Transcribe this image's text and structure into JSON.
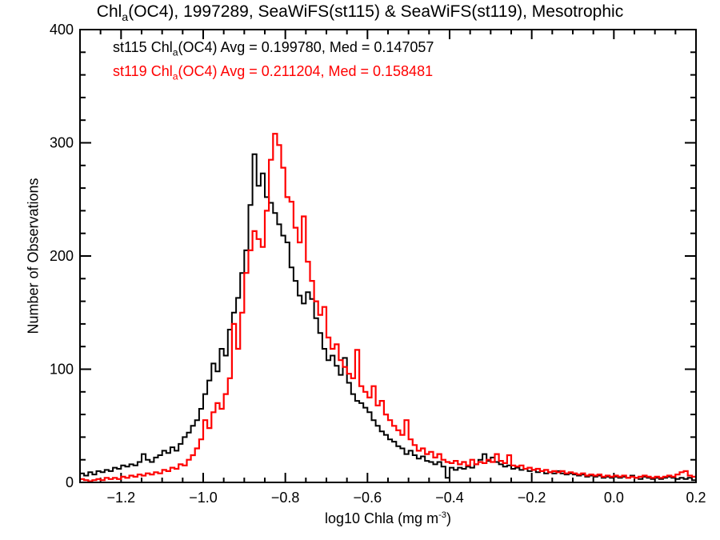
{
  "title": {
    "pre": "Chl",
    "sub": "a",
    "post": "(OC4), 1997289, SeaWiFS(st115) & SeaWiFS(st119), Mesotrophic"
  },
  "legend": {
    "entries": [
      {
        "pre": "st115 Chl",
        "sub": "a",
        "post": "(OC4) Avg = 0.199780, Med = 0.147057",
        "color": "#000000"
      },
      {
        "pre": "st119 Chl",
        "sub": "a",
        "post": "(OC4) Avg = 0.211204, Med = 0.158481",
        "color": "#ff0000"
      }
    ]
  },
  "axes": {
    "x": {
      "label_pre": "log10 Chla (mg m",
      "label_sup": "-3",
      "label_post": ")",
      "min": -1.3,
      "max": 0.2,
      "major_ticks": [
        -1.2,
        -1.0,
        -0.8,
        -0.6,
        -0.4,
        -0.2,
        0.0,
        0.2
      ],
      "major_tick_labels": [
        "−1.2",
        "−1.0",
        "−0.8",
        "−0.6",
        "−0.4",
        "−0.2",
        "0.0",
        "0.2"
      ],
      "minor_step": 0.05
    },
    "y": {
      "label": "Number of Observations",
      "min": 0,
      "max": 400,
      "major_ticks": [
        0,
        100,
        200,
        300,
        400
      ],
      "major_tick_labels": [
        "0",
        "100",
        "200",
        "300",
        "400"
      ],
      "minor_step": 20
    }
  },
  "colors": {
    "background": "#ffffff",
    "axis": "#000000",
    "series1": "#000000",
    "series2": "#ff0000"
  },
  "chart_data": {
    "type": "step-histogram",
    "title": "Chla(OC4), 1997289, SeaWiFS(st115) & SeaWiFS(st119), Mesotrophic",
    "xlabel": "log10 Chla (mg m-3)",
    "ylabel": "Number of Observations",
    "xlim": [
      -1.3,
      0.2
    ],
    "ylim": [
      0,
      400
    ],
    "grid": false,
    "legend_position": "top-left-inside",
    "x_start": -1.3,
    "bin_width": 0.01,
    "series": [
      {
        "name": "st115",
        "color": "#000000",
        "avg": 0.19978,
        "med": 0.147057,
        "values": [
          8,
          6,
          9,
          7,
          10,
          9,
          11,
          10,
          13,
          12,
          15,
          14,
          16,
          15,
          18,
          25,
          20,
          18,
          22,
          24,
          28,
          26,
          31,
          28,
          34,
          40,
          44,
          50,
          55,
          65,
          78,
          90,
          105,
          98,
          118,
          112,
          135,
          150,
          163,
          185,
          205,
          245,
          290,
          262,
          273,
          252,
          247,
          238,
          228,
          218,
          212,
          190,
          178,
          165,
          158,
          168,
          162,
          145,
          132,
          118,
          108,
          112,
          103,
          95,
          110,
          88,
          78,
          72,
          70,
          66,
          62,
          55,
          50,
          45,
          42,
          38,
          36,
          32,
          30,
          25,
          28,
          24,
          21,
          23,
          19,
          18,
          16,
          18,
          14,
          4,
          13,
          11,
          13,
          12,
          14,
          13,
          16,
          20,
          25,
          19,
          22,
          18,
          16,
          14,
          15,
          12,
          13,
          11,
          12,
          10,
          11,
          9,
          10,
          8,
          9,
          8,
          10,
          8,
          7,
          8,
          7,
          6,
          7,
          5,
          6,
          5,
          6,
          4,
          5,
          4,
          5,
          4,
          5,
          4,
          6,
          4,
          3,
          5,
          4,
          3,
          4,
          3,
          4,
          5,
          4,
          3,
          4,
          3,
          4,
          2
        ]
      },
      {
        "name": "st119",
        "color": "#ff0000",
        "avg": 0.211204,
        "med": 0.158481,
        "values": [
          3,
          2,
          1,
          2,
          3,
          2,
          4,
          3,
          4,
          3,
          5,
          4,
          6,
          5,
          7,
          6,
          8,
          7,
          9,
          8,
          11,
          10,
          13,
          12,
          16,
          15,
          20,
          24,
          30,
          38,
          55,
          48,
          62,
          70,
          65,
          78,
          92,
          140,
          118,
          150,
          185,
          205,
          222,
          215,
          208,
          240,
          285,
          308,
          298,
          278,
          252,
          248,
          225,
          212,
          235,
          195,
          178,
          160,
          148,
          155,
          128,
          118,
          122,
          108,
          102,
          96,
          92,
          117,
          85,
          80,
          75,
          85,
          68,
          72,
          60,
          55,
          50,
          46,
          42,
          55,
          38,
          33,
          28,
          30,
          25,
          27,
          22,
          25,
          20,
          18,
          17,
          19,
          16,
          18,
          15,
          20,
          16,
          18,
          17,
          20,
          18,
          25,
          19,
          17,
          24,
          15,
          14,
          15,
          12,
          13,
          11,
          12,
          10,
          11,
          9,
          10,
          9,
          10,
          8,
          9,
          8,
          7,
          8,
          6,
          7,
          6,
          7,
          5,
          6,
          5,
          6,
          5,
          6,
          4,
          5,
          4,
          5,
          6,
          5,
          4,
          5,
          4,
          5,
          6,
          5,
          7,
          9,
          10,
          6,
          5
        ]
      }
    ]
  }
}
